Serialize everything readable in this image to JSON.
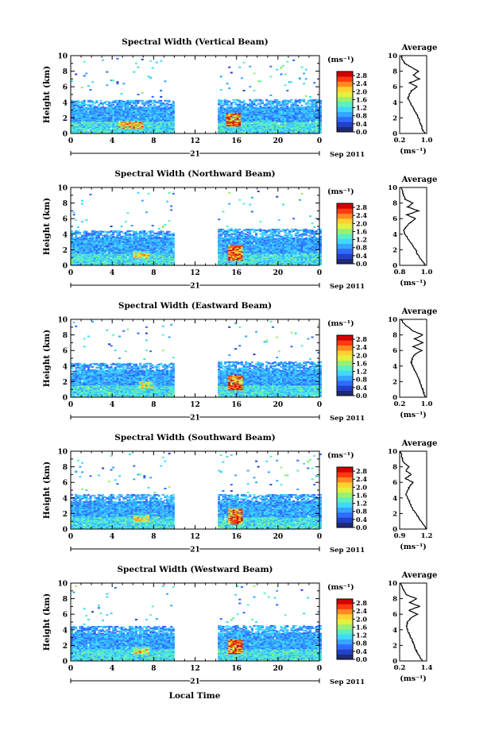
{
  "date_label": "Sep 2011",
  "day_label": "21",
  "xlabel": "Local Time",
  "ylabel": "Height (km)",
  "colorbar": {
    "unit_label": "(ms⁻¹)",
    "ticks": [
      "0.0",
      "0.4",
      "0.8",
      "1.2",
      "1.6",
      "2.0",
      "2.4",
      "2.8"
    ],
    "colors": [
      "#1e2a78",
      "#2340c8",
      "#2f6bff",
      "#35a6ff",
      "#3fd8ff",
      "#5cf0c0",
      "#9cf070",
      "#e4f040",
      "#ffd030",
      "#ff8a20",
      "#ff3a10",
      "#d40000"
    ]
  },
  "chart_data": [
    {
      "type": "heatmap",
      "title": "Spectral Width (Vertical Beam)",
      "x_ticks": [
        "0",
        "4",
        "8",
        "12",
        "16",
        "20",
        "0"
      ],
      "y_ticks": [
        "0",
        "2",
        "4",
        "6",
        "8",
        "10"
      ],
      "xlim": [
        0,
        24
      ],
      "ylim": [
        0,
        10
      ],
      "clim": [
        0,
        3.0
      ],
      "data_gaps_hours": [
        [
          9.8,
          14.0
        ]
      ],
      "regions": [
        {
          "x": [
            0,
            9.8
          ],
          "y": [
            0,
            4.2
          ],
          "v": 1.0
        },
        {
          "x": [
            14.0,
            24
          ],
          "y": [
            0,
            4.3
          ],
          "v": 1.0
        },
        {
          "x": [
            4.5,
            7.0
          ],
          "y": [
            0.6,
            1.6
          ],
          "v": 2.0
        },
        {
          "x": [
            14.8,
            16.2
          ],
          "y": [
            0.8,
            2.6
          ],
          "v": 2.6
        }
      ],
      "average": {
        "title": "Average",
        "x_ticks": [
          "0.2",
          "1.0"
        ],
        "xlim": [
          0.2,
          1.0
        ],
        "xlabel": "(ms⁻¹)",
        "heights": [
          0,
          0.5,
          1,
          1.5,
          2,
          2.5,
          3,
          3.5,
          4,
          4.5,
          5,
          5.5,
          6,
          6.5,
          7,
          7.5,
          8,
          8.5,
          9,
          9.5,
          10
        ],
        "values": [
          0.95,
          0.88,
          0.84,
          0.8,
          0.76,
          0.7,
          0.64,
          0.58,
          0.5,
          0.45,
          0.48,
          0.55,
          0.72,
          0.5,
          0.78,
          0.6,
          0.76,
          0.55,
          0.35,
          0.28,
          0.25
        ]
      }
    },
    {
      "type": "heatmap",
      "title": "Spectral Width (Northward Beam)",
      "x_ticks": [
        "0",
        "4",
        "8",
        "12",
        "16",
        "20",
        "0"
      ],
      "y_ticks": [
        "0",
        "2",
        "4",
        "6",
        "8",
        "10"
      ],
      "xlim": [
        0,
        24
      ],
      "ylim": [
        0,
        10
      ],
      "clim": [
        0,
        3.0
      ],
      "data_gaps_hours": [
        [
          9.8,
          14.0
        ]
      ],
      "regions": [
        {
          "x": [
            0,
            9.8
          ],
          "y": [
            0,
            4.4
          ],
          "v": 1.0
        },
        {
          "x": [
            14.0,
            24
          ],
          "y": [
            0,
            4.6
          ],
          "v": 1.0
        },
        {
          "x": [
            6.0,
            7.5
          ],
          "y": [
            0.8,
            1.8
          ],
          "v": 1.8
        },
        {
          "x": [
            15.0,
            16.5
          ],
          "y": [
            0.6,
            2.6
          ],
          "v": 2.6
        }
      ],
      "average": {
        "title": "Average",
        "x_ticks": [
          "0.8",
          "1.0"
        ],
        "xlim": [
          0.8,
          1.0
        ],
        "xlabel": "(ms⁻¹)",
        "heights": [
          0,
          0.5,
          1,
          1.5,
          2,
          2.5,
          3,
          3.5,
          4,
          4.5,
          5,
          5.5,
          6,
          6.5,
          7,
          7.5,
          8,
          8.5,
          9,
          9.5,
          10
        ],
        "values": [
          0.99,
          0.97,
          0.95,
          0.93,
          0.92,
          0.9,
          0.88,
          0.86,
          0.84,
          0.83,
          0.85,
          0.88,
          0.92,
          0.85,
          0.94,
          0.86,
          0.9,
          0.84,
          0.83,
          0.82,
          0.81
        ]
      }
    },
    {
      "type": "heatmap",
      "title": "Spectral Width (Eastward Beam)",
      "x_ticks": [
        "0",
        "4",
        "8",
        "12",
        "16",
        "20",
        "0"
      ],
      "y_ticks": [
        "0",
        "2",
        "4",
        "6",
        "8",
        "10"
      ],
      "xlim": [
        0,
        24
      ],
      "ylim": [
        0,
        10
      ],
      "clim": [
        0,
        3.0
      ],
      "data_gaps_hours": [
        [
          9.8,
          14.0
        ]
      ],
      "regions": [
        {
          "x": [
            0,
            9.8
          ],
          "y": [
            0,
            4.3
          ],
          "v": 1.0
        },
        {
          "x": [
            14.0,
            24
          ],
          "y": [
            0,
            4.5
          ],
          "v": 1.0
        },
        {
          "x": [
            6.5,
            8.0
          ],
          "y": [
            1.0,
            2.0
          ],
          "v": 1.8
        },
        {
          "x": [
            15.0,
            16.4
          ],
          "y": [
            0.8,
            2.8
          ],
          "v": 2.6
        }
      ],
      "average": {
        "title": "Average",
        "x_ticks": [
          "0.2",
          "1.0"
        ],
        "xlim": [
          0.2,
          1.0
        ],
        "xlabel": "(ms⁻¹)",
        "heights": [
          0,
          0.5,
          1,
          1.5,
          2,
          2.5,
          3,
          3.5,
          4,
          4.5,
          5,
          5.5,
          6,
          6.5,
          7,
          7.5,
          8,
          8.5,
          9,
          9.5,
          10
        ],
        "values": [
          0.97,
          0.92,
          0.88,
          0.84,
          0.8,
          0.76,
          0.7,
          0.64,
          0.58,
          0.54,
          0.58,
          0.65,
          0.85,
          0.6,
          0.9,
          0.65,
          0.88,
          0.6,
          0.45,
          0.32,
          0.25
        ]
      }
    },
    {
      "type": "heatmap",
      "title": "Spectral Width (Southward Beam)",
      "x_ticks": [
        "0",
        "4",
        "8",
        "12",
        "16",
        "20",
        "0"
      ],
      "y_ticks": [
        "0",
        "2",
        "4",
        "6",
        "8",
        "10"
      ],
      "xlim": [
        0,
        24
      ],
      "ylim": [
        0,
        10
      ],
      "clim": [
        0,
        3.0
      ],
      "data_gaps_hours": [
        [
          9.8,
          14.0
        ]
      ],
      "regions": [
        {
          "x": [
            0,
            9.8
          ],
          "y": [
            0,
            4.4
          ],
          "v": 1.0
        },
        {
          "x": [
            14.0,
            24
          ],
          "y": [
            0,
            4.4
          ],
          "v": 1.0
        },
        {
          "x": [
            6.0,
            7.5
          ],
          "y": [
            0.8,
            1.8
          ],
          "v": 1.8
        },
        {
          "x": [
            15.0,
            16.4
          ],
          "y": [
            0.6,
            2.6
          ],
          "v": 2.6
        }
      ],
      "average": {
        "title": "Average",
        "x_ticks": [
          "0.9",
          "1.2"
        ],
        "xlim": [
          0.9,
          1.2
        ],
        "xlabel": "(ms⁻¹)",
        "heights": [
          0,
          0.5,
          1,
          1.5,
          2,
          2.5,
          3,
          3.5,
          4,
          4.5,
          5,
          5.5,
          6,
          6.5,
          7,
          7.5,
          8,
          8.5,
          9,
          9.5,
          10
        ],
        "values": [
          1.19,
          1.17,
          1.14,
          1.11,
          1.08,
          1.05,
          1.03,
          1.01,
          0.99,
          0.97,
          0.99,
          1.01,
          1.05,
          0.96,
          1.03,
          0.97,
          1.0,
          0.95,
          0.93,
          0.92,
          0.91
        ]
      }
    },
    {
      "type": "heatmap",
      "title": "Spectral Width (Westward Beam)",
      "x_ticks": [
        "0",
        "4",
        "8",
        "12",
        "16",
        "20",
        "0"
      ],
      "y_ticks": [
        "0",
        "2",
        "4",
        "6",
        "8",
        "10"
      ],
      "xlim": [
        0,
        24
      ],
      "ylim": [
        0,
        10
      ],
      "clim": [
        0,
        3.0
      ],
      "data_gaps_hours": [
        [
          9.8,
          14.0
        ]
      ],
      "regions": [
        {
          "x": [
            0,
            9.8
          ],
          "y": [
            0,
            4.4
          ],
          "v": 1.0
        },
        {
          "x": [
            14.0,
            24
          ],
          "y": [
            0,
            4.5
          ],
          "v": 1.0
        },
        {
          "x": [
            6.0,
            7.5
          ],
          "y": [
            0.8,
            1.8
          ],
          "v": 1.8
        },
        {
          "x": [
            15.0,
            16.4
          ],
          "y": [
            0.8,
            2.8
          ],
          "v": 2.6
        }
      ],
      "average": {
        "title": "Average",
        "x_ticks": [
          "0.2",
          "1.4"
        ],
        "xlim": [
          0.2,
          1.4
        ],
        "xlabel": "(ms⁻¹)",
        "heights": [
          0,
          0.5,
          1,
          1.5,
          2,
          2.5,
          3,
          3.5,
          4,
          4.5,
          5,
          5.5,
          6,
          6.5,
          7,
          7.5,
          8,
          8.5,
          9,
          9.5,
          10
        ],
        "values": [
          1.2,
          1.1,
          1.0,
          0.9,
          0.85,
          0.78,
          0.7,
          0.62,
          0.55,
          0.5,
          0.55,
          0.7,
          1.0,
          0.6,
          1.1,
          0.65,
          0.95,
          0.5,
          0.4,
          0.3,
          0.25
        ]
      }
    }
  ]
}
